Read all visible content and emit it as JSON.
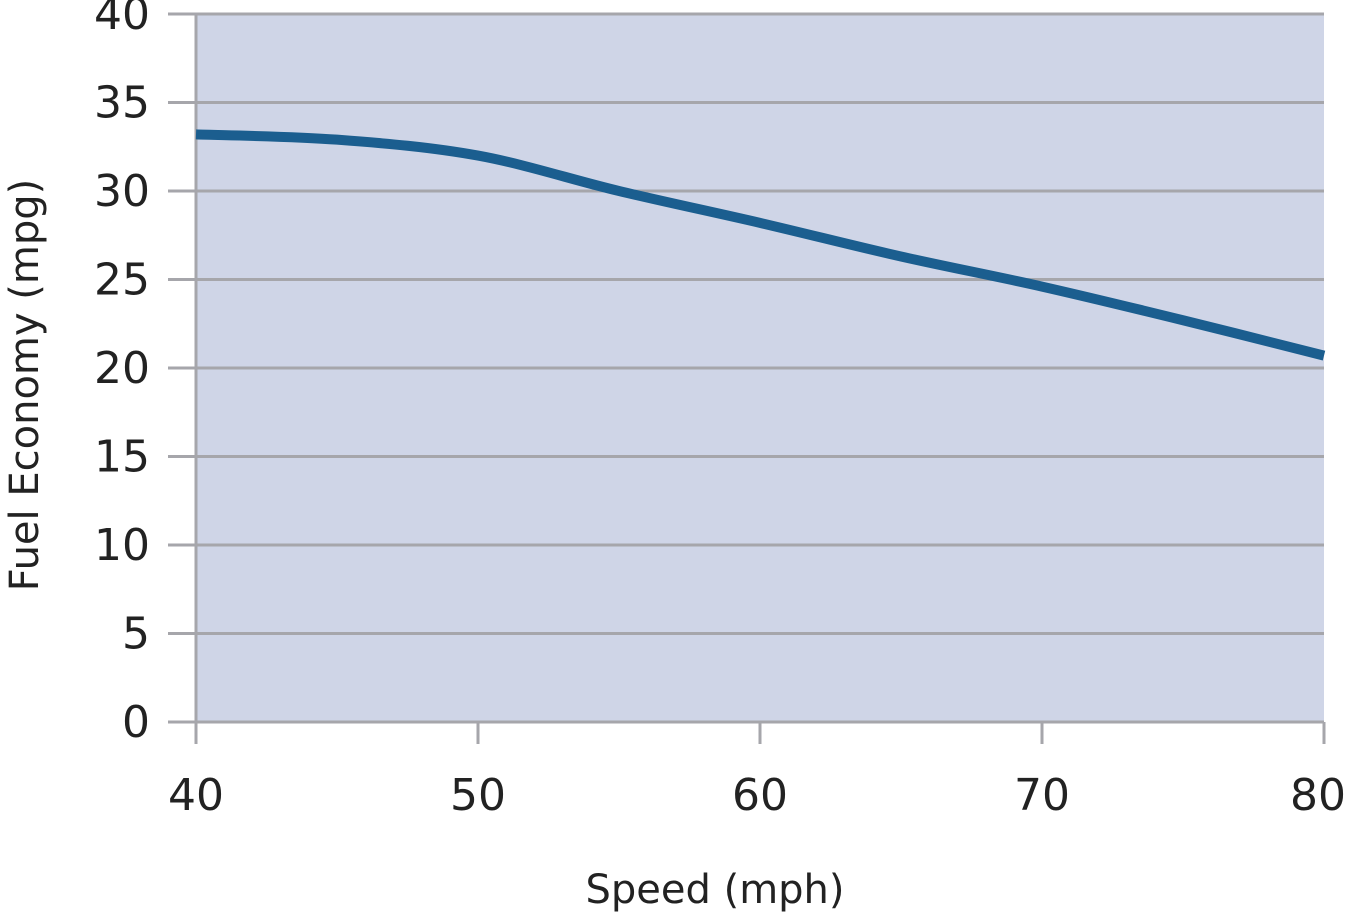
{
  "chart_data": {
    "type": "line",
    "title": "",
    "xlabel": "Speed (mph)",
    "ylabel": "Fuel Economy (mpg)",
    "xlim": [
      40,
      80
    ],
    "ylim": [
      0,
      40
    ],
    "x_ticks": [
      "40",
      "50",
      "60",
      "70",
      "80"
    ],
    "y_ticks": [
      "0",
      "5",
      "10",
      "15",
      "20",
      "25",
      "30",
      "35",
      "40"
    ],
    "grid": "horizontal",
    "legend": "none",
    "series": [
      {
        "x": [
          40,
          45,
          50,
          55,
          60,
          65,
          70,
          75,
          80
        ],
        "y": [
          33.2,
          32.9,
          32.0,
          30.0,
          28.2,
          26.3,
          24.6,
          22.7,
          20.7
        ]
      }
    ],
    "colors": {
      "plot_background": "#cfd5e7",
      "line": "#1b5e8f",
      "grid": "#a6a6ab"
    }
  }
}
